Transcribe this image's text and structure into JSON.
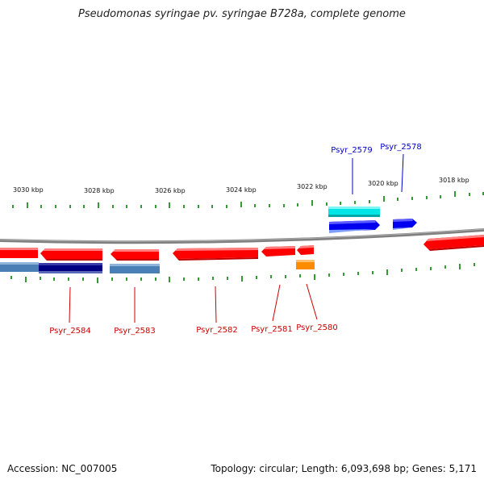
{
  "header": {
    "title": "Pseudomonas syringae pv. syringae B728a, complete genome"
  },
  "footer": {
    "accession": "Accession: NC_007005",
    "topology": "Topology: circular; Length: 6,093,698 bp; Genes: 5,171"
  },
  "scale_labels": [
    "3030 kbp",
    "3028 kbp",
    "3026 kbp",
    "3024 kbp",
    "3022 kbp",
    "3020 kbp",
    "3018 kbp"
  ],
  "gene_labels": [
    "Psyr_2579",
    "Psyr_2578",
    "Psyr_2584",
    "Psyr_2583",
    "Psyr_2582",
    "Psyr_2581",
    "Psyr_2580"
  ],
  "colors": {
    "cds_red": "#ff0000",
    "cds_blue": "#0000ee",
    "cds_cyan": "#00e5e5",
    "navy": "#000080",
    "steel_blue": "#4a7fb5",
    "orange": "#ff8c00",
    "tick_green": "#008000",
    "label_red": "#cc0000",
    "label_blue": "#0000cc",
    "backbone_gray": "#808080"
  }
}
